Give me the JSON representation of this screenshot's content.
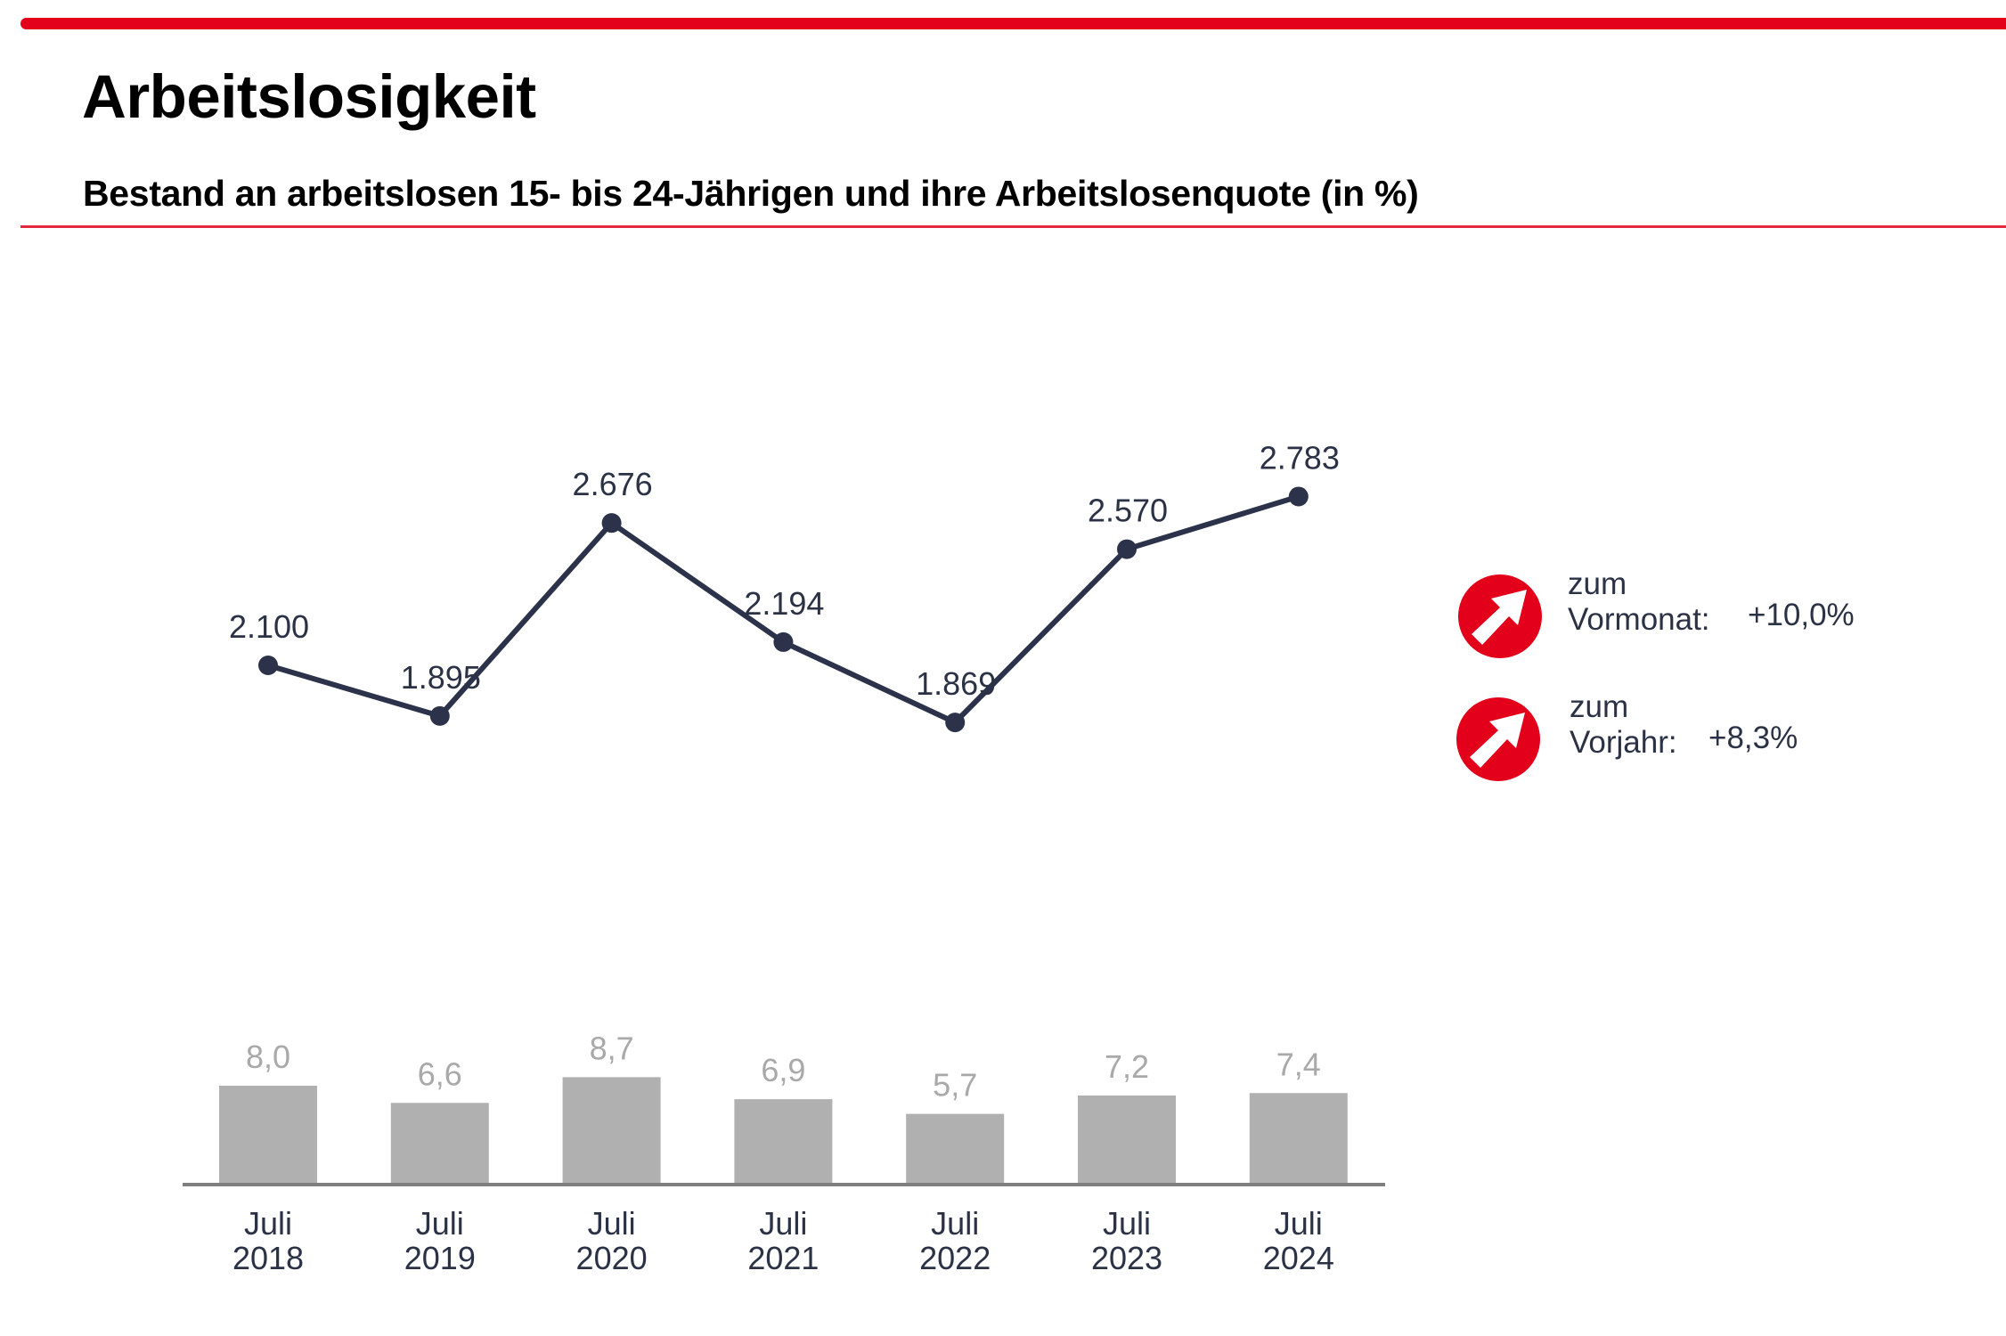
{
  "header": {
    "title": "Arbeitslosigkeit",
    "subtitle": "Bestand an arbeitslosen 15- bis 24-Jährigen und ihre Arbeitslosenquote (in %)"
  },
  "colors": {
    "accent_red": "#e2001a",
    "line": "#2b3249",
    "bar": "#b0b0b0",
    "bar_label": "#a9a9a9",
    "axis": "#7f7f7f",
    "text": "#2b3245"
  },
  "indicators": [
    {
      "icon": "arrow-up-right-icon",
      "label_line1": "zum",
      "label_line2": "Vormonat:",
      "value": "+10,0%"
    },
    {
      "icon": "arrow-up-right-icon",
      "label_line1": "zum",
      "label_line2": "Vorjahr:",
      "value": "+8,3%"
    }
  ],
  "chart_data": [
    {
      "type": "line",
      "title": "Bestand an arbeitslosen 15- bis 24-Jährigen",
      "categories": [
        "Juli 2018",
        "Juli 2019",
        "Juli 2020",
        "Juli 2021",
        "Juli 2022",
        "Juli 2023",
        "Juli 2024"
      ],
      "values": [
        2100,
        1895,
        2676,
        2194,
        1869,
        2570,
        2783
      ],
      "data_labels": [
        "2.100",
        "1.895",
        "2.676",
        "2.194",
        "1.869",
        "2.570",
        "2.783"
      ],
      "xlabel": "",
      "ylabel": "",
      "grid": false,
      "legend": "none"
    },
    {
      "type": "bar",
      "title": "Arbeitslosenquote (in %)",
      "categories": [
        "Juli 2018",
        "Juli 2019",
        "Juli 2020",
        "Juli 2021",
        "Juli 2022",
        "Juli 2023",
        "Juli 2024"
      ],
      "category_lines": [
        [
          "Juli",
          "2018"
        ],
        [
          "Juli",
          "2019"
        ],
        [
          "Juli",
          "2020"
        ],
        [
          "Juli",
          "2021"
        ],
        [
          "Juli",
          "2022"
        ],
        [
          "Juli",
          "2023"
        ],
        [
          "Juli",
          "2024"
        ]
      ],
      "values": [
        8.0,
        6.6,
        8.7,
        6.9,
        5.7,
        7.2,
        7.4
      ],
      "data_labels": [
        "8,0",
        "6,6",
        "8,7",
        "6,9",
        "5,7",
        "7,2",
        "7,4"
      ],
      "xlabel": "",
      "ylabel": "",
      "ylim": [
        0,
        10
      ],
      "grid": false,
      "legend": "none"
    }
  ]
}
